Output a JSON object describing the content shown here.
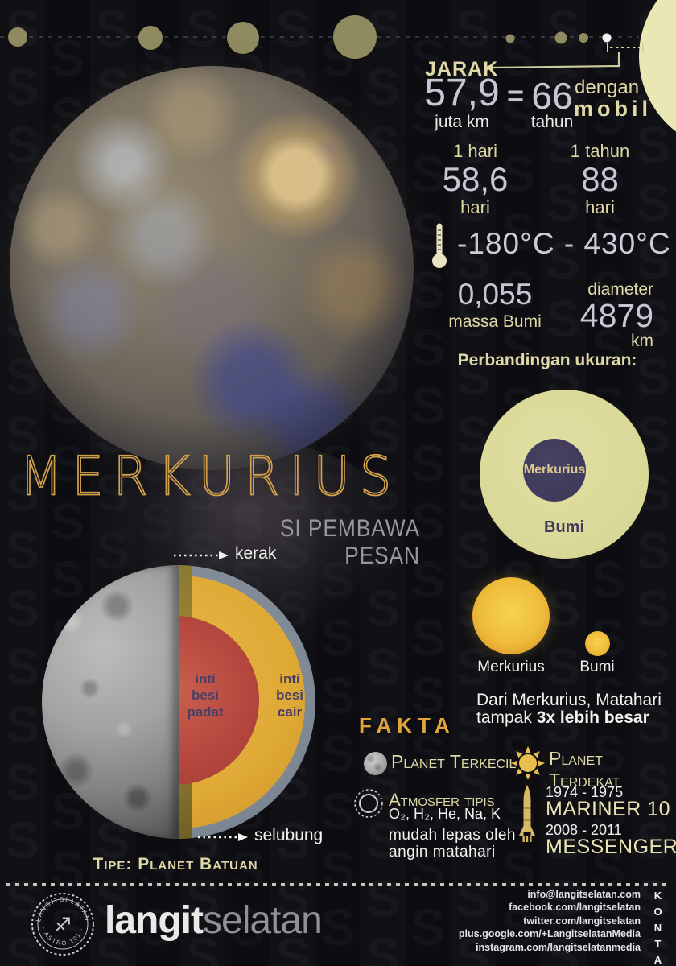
{
  "background": {
    "watermark_letter": "S"
  },
  "jarak": {
    "label": "JARAK",
    "value": "57,9",
    "unit": "juta km",
    "equals": "=",
    "equiv_value": "66",
    "equiv_unit": "tahun",
    "equiv_suffix_1": "dengan",
    "equiv_suffix_2": "mobil"
  },
  "rotation": {
    "label": "1 hari",
    "value": "58,6",
    "unit": "hari"
  },
  "orbit": {
    "label": "1 tahun",
    "value": "88",
    "unit": "hari"
  },
  "temperature": {
    "range": "-180°C - 430°C"
  },
  "mass": {
    "value": "0,055",
    "label": "massa Bumi"
  },
  "diameter": {
    "label": "diameter",
    "value": "4879",
    "unit": "km"
  },
  "size_comparison": {
    "heading": "Perbandingan ukuran:",
    "inner_label": "Merkurius",
    "outer_label": "Bumi"
  },
  "title": "MERKURIUS",
  "subtitle": "SI PEMBAWA PESAN",
  "core": {
    "crust_label": "kerak",
    "mantle_label": "selubung",
    "inner_core_label": "inti\nbesi\npadat",
    "outer_core_label": "inti\nbesi\ncair",
    "type_label": "Tipe: Planet Batuan"
  },
  "sun_view": {
    "left_label": "Merkurius",
    "right_label": "Bumi",
    "caption_line1": "Dari Merkurius, Matahari",
    "caption_line2_regular": "tampak ",
    "caption_line2_bold": "3x lebih besar"
  },
  "fakta": {
    "heading": "FAKTA",
    "smallest": "Planet Terkecil",
    "closest": "Planet Terdekat",
    "atmosphere_title": "Atmosfer tipis",
    "atmosphere_elements": "O₂, H₂, He, Na, K",
    "atmosphere_note_1": "mudah lepas oleh",
    "atmosphere_note_2": "angin matahari",
    "missions": [
      {
        "years": "1974 - 1975",
        "name": "MARINER 10"
      },
      {
        "years": "2008 - 2011",
        "name": "MESSENGER"
      }
    ]
  },
  "footer": {
    "brand_bold": "langit",
    "brand_light": "selatan",
    "stamp_top": "LANGITSELATAN",
    "stamp_bottom": "· ASTRO 101 ·",
    "kontak": "KONTAK",
    "contacts": [
      "info@langitselatan.com",
      "facebook.com/langitselatan",
      "twitter.com/langitselatan",
      "plus.google.com/+LangitselatanMedia",
      "instagram.com/langitselatanmedia"
    ]
  },
  "colors": {
    "title_gold": "#d2a14c",
    "pale_yellow": "#ded9a6",
    "number_gray": "#c6c7d4",
    "fakta_gold": "#dfa43c",
    "sun_yellow": "#eebc3a",
    "core_red": "#b5473e",
    "mantle_gold": "#dfa935",
    "shell_gray": "#7d8894",
    "earth_circle": "#d9d897",
    "mercury_circle": "#3f3a59"
  },
  "icons": [
    "thermometer-icon",
    "moon-icon",
    "sun-icon",
    "atmosphere-icon",
    "rocket-icon",
    "archer-stamp-icon",
    "planet-scale-dots",
    "sun-disc",
    "arrow-icon"
  ]
}
